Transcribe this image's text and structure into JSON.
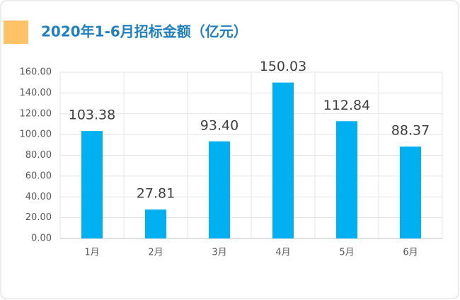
{
  "chart_data": {
    "type": "bar",
    "title": "2020年1-6月招标金额（亿元）",
    "categories": [
      "1月",
      "2月",
      "3月",
      "4月",
      "5月",
      "6月"
    ],
    "values": [
      103.38,
      27.81,
      93.4,
      150.03,
      112.84,
      88.37
    ],
    "value_labels": [
      "103.38",
      "27.81",
      "93.40",
      "150.03",
      "112.84",
      "88.37"
    ],
    "color": "#00b0f0",
    "ylim": [
      0,
      160
    ],
    "yticks": [
      {
        "value": 0,
        "label": "0.00"
      },
      {
        "value": 20,
        "label": "20.00"
      },
      {
        "value": 40,
        "label": "40.00"
      },
      {
        "value": 60,
        "label": "60.00"
      },
      {
        "value": 80,
        "label": "80.00"
      },
      {
        "value": 100,
        "label": "100.00"
      },
      {
        "value": 120,
        "label": "120.00"
      },
      {
        "value": 140,
        "label": "140.00"
      },
      {
        "value": 160,
        "label": "160.00"
      }
    ],
    "grid": true
  }
}
